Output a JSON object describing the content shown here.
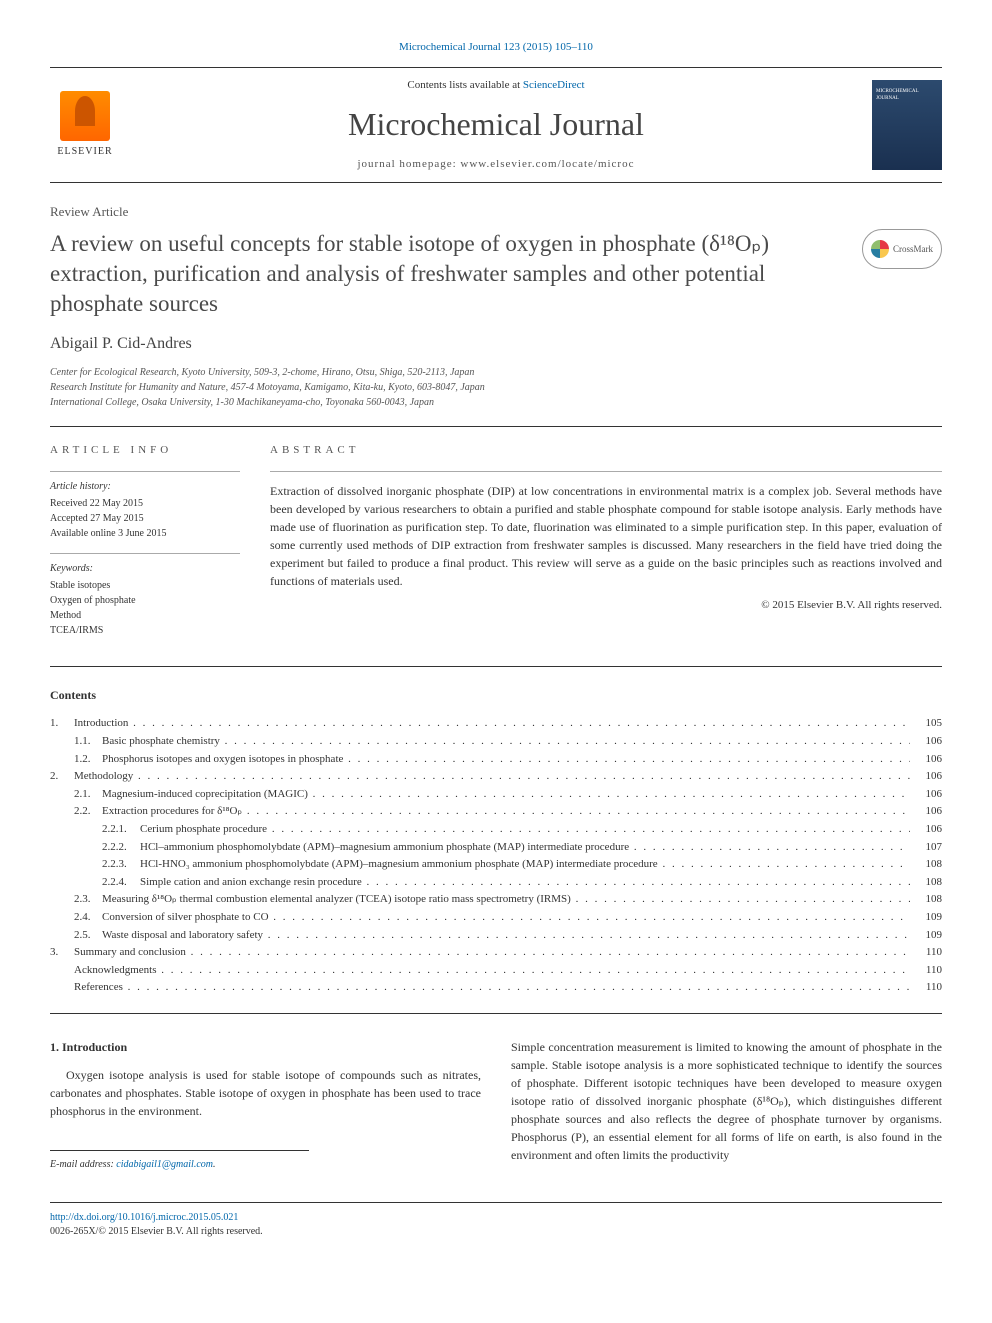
{
  "top_link": {
    "prefix": "Microchemical Journal 123 (2015) 105–110"
  },
  "header": {
    "contents_prefix": "Contents lists available at ",
    "contents_link": "ScienceDirect",
    "journal_title": "Microchemical Journal",
    "homepage_label": "journal homepage: www.elsevier.com/locate/microc",
    "elsevier": "ELSEVIER",
    "cover_label": "MICROCHEMICAL JOURNAL"
  },
  "article": {
    "type": "Review Article",
    "title": "A review on useful concepts for stable isotope of oxygen in phosphate (δ¹⁸Oₚ) extraction, purification and analysis of freshwater samples and other potential phosphate sources",
    "author": "Abigail P. Cid-Andres",
    "affiliations": [
      "Center for Ecological Research, Kyoto University, 509-3, 2-chome, Hirano, Otsu, Shiga, 520-2113, Japan",
      "Research Institute for Humanity and Nature, 457-4 Motoyama, Kamigamo, Kita-ku, Kyoto, 603-8047, Japan",
      "International College, Osaka University, 1-30 Machikaneyama-cho, Toyonaka 560-0043, Japan"
    ],
    "crossmark": "CrossMark"
  },
  "info": {
    "header": "ARTICLE INFO",
    "history_title": "Article history:",
    "received": "Received 22 May 2015",
    "accepted": "Accepted 27 May 2015",
    "online": "Available online 3 June 2015",
    "keywords_title": "Keywords:",
    "keywords": [
      "Stable isotopes",
      "Oxygen of phosphate",
      "Method",
      "TCEA/IRMS"
    ]
  },
  "abstract": {
    "header": "ABSTRACT",
    "text": "Extraction of dissolved inorganic phosphate (DIP) at low concentrations in environmental matrix is a complex job. Several methods have been developed by various researchers to obtain a purified and stable phosphate compound for stable isotope analysis. Early methods have made use of fluorination as purification step. To date, fluorination was eliminated to a simple purification step. In this paper, evaluation of some currently used methods of DIP extraction from freshwater samples is discussed. Many researchers in the field have tried doing the experiment but failed to produce a final product. This review will serve as a guide on the basic principles such as reactions involved and functions of materials used.",
    "copyright": "© 2015 Elsevier B.V. All rights reserved."
  },
  "contents": {
    "header": "Contents",
    "items": [
      {
        "num1": "1.",
        "num2": "",
        "num3": "",
        "label": "Introduction",
        "page": "105",
        "indent": 0
      },
      {
        "num1": "",
        "num2": "1.1.",
        "num3": "",
        "label": "Basic phosphate chemistry",
        "page": "106",
        "indent": 1
      },
      {
        "num1": "",
        "num2": "1.2.",
        "num3": "",
        "label": "Phosphorus isotopes and oxygen isotopes in phosphate",
        "page": "106",
        "indent": 1
      },
      {
        "num1": "2.",
        "num2": "",
        "num3": "",
        "label": "Methodology",
        "page": "106",
        "indent": 0
      },
      {
        "num1": "",
        "num2": "2.1.",
        "num3": "",
        "label": "Magnesium-induced coprecipitation (MAGIC)",
        "page": "106",
        "indent": 1
      },
      {
        "num1": "",
        "num2": "2.2.",
        "num3": "",
        "label": "Extraction procedures for δ¹⁸Oₚ",
        "page": "106",
        "indent": 1
      },
      {
        "num1": "",
        "num2": "",
        "num3": "2.2.1.",
        "label": "Cerium phosphate procedure",
        "page": "106",
        "indent": 2
      },
      {
        "num1": "",
        "num2": "",
        "num3": "2.2.2.",
        "label": "HCl–ammonium phosphomolybdate (APM)–magnesium ammonium phosphate (MAP) intermediate procedure",
        "page": "107",
        "indent": 2
      },
      {
        "num1": "",
        "num2": "",
        "num3": "2.2.3.",
        "label": "HCl-HNO₃ ammonium phosphomolybdate (APM)–magnesium ammonium phosphate (MAP) intermediate procedure",
        "page": "108",
        "indent": 2
      },
      {
        "num1": "",
        "num2": "",
        "num3": "2.2.4.",
        "label": "Simple cation and anion exchange resin procedure",
        "page": "108",
        "indent": 2
      },
      {
        "num1": "",
        "num2": "2.3.",
        "num3": "",
        "label": "Measuring δ¹⁸Oₚ thermal combustion elemental analyzer (TCEA) isotope ratio mass spectrometry (IRMS)",
        "page": "108",
        "indent": 1
      },
      {
        "num1": "",
        "num2": "2.4.",
        "num3": "",
        "label": "Conversion of silver phosphate to CO",
        "page": "109",
        "indent": 1
      },
      {
        "num1": "",
        "num2": "2.5.",
        "num3": "",
        "label": "Waste disposal and laboratory safety",
        "page": "109",
        "indent": 1
      },
      {
        "num1": "3.",
        "num2": "",
        "num3": "",
        "label": "Summary and conclusion",
        "page": "110",
        "indent": 0
      },
      {
        "num1": "",
        "num2": "",
        "num3": "",
        "label": "Acknowledgments",
        "page": "110",
        "indent": 0
      },
      {
        "num1": "",
        "num2": "",
        "num3": "",
        "label": "References",
        "page": "110",
        "indent": 0
      }
    ]
  },
  "body": {
    "heading": "1. Introduction",
    "col1": "Oxygen isotope analysis is used for stable isotope of compounds such as nitrates, carbonates and phosphates. Stable isotope of oxygen in phosphate has been used to trace phosphorus in the environment.",
    "col2": "Simple concentration measurement is limited to knowing the amount of phosphate in the sample. Stable isotope analysis is a more sophisticated technique to identify the sources of phosphate. Different isotopic techniques have been developed to measure oxygen isotope ratio of dissolved inorganic phosphate (δ¹⁸Oₚ), which distinguishes different phosphate sources and also reflects the degree of phosphate turnover by organisms. Phosphorus (P), an essential element for all forms of life on earth, is also found in the environment and often limits the productivity"
  },
  "email": {
    "label": "E-mail address: ",
    "address": "cidabigail1@gmail.com"
  },
  "footer": {
    "doi": "http://dx.doi.org/10.1016/j.microc.2015.05.021",
    "issn": "0026-265X/© 2015 Elsevier B.V. All rights reserved."
  }
}
